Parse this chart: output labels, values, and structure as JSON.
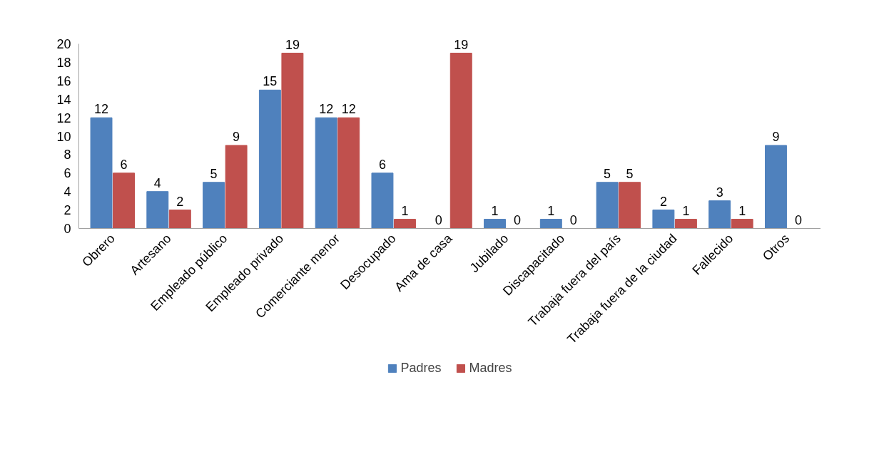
{
  "chart_data": {
    "type": "bar",
    "categories": [
      "Obrero",
      "Artesano",
      "Empleado público",
      "Empleado privado",
      "Comerciante menor",
      "Desocupado",
      "Ama de casa",
      "Jubilado",
      "Discapacitado",
      "Trabaja fuera del país",
      "Trabaja fuera de la ciudad",
      "Fallecido",
      "Otros"
    ],
    "series": [
      {
        "name": "Padres",
        "color": "#4f81bd",
        "values": [
          12,
          4,
          5,
          15,
          12,
          6,
          0,
          1,
          1,
          5,
          2,
          3,
          9
        ]
      },
      {
        "name": "Madres",
        "color": "#c0504d",
        "values": [
          6,
          2,
          9,
          19,
          12,
          1,
          19,
          0,
          0,
          5,
          1,
          1,
          0
        ]
      }
    ],
    "ylim": [
      0,
      20
    ],
    "yticks": [
      0,
      2,
      4,
      6,
      8,
      10,
      12,
      14,
      16,
      18,
      20
    ],
    "data_labels": true,
    "legend": "bottom"
  }
}
